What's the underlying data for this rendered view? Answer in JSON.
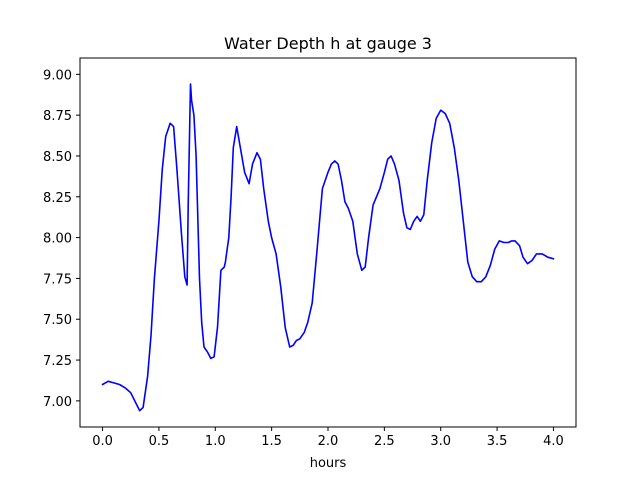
{
  "chart_data": {
    "type": "line",
    "title": "Water Depth h at gauge 3",
    "xlabel": "hours",
    "ylabel": "",
    "xlim": [
      -0.2,
      4.2
    ],
    "ylim": [
      6.84,
      9.1
    ],
    "xticks": [
      0.0,
      0.5,
      1.0,
      1.5,
      2.0,
      2.5,
      3.0,
      3.5,
      4.0
    ],
    "xtick_labels": [
      "0.0",
      "0.5",
      "1.0",
      "1.5",
      "2.0",
      "2.5",
      "3.0",
      "3.5",
      "4.0"
    ],
    "yticks": [
      7.0,
      7.25,
      7.5,
      7.75,
      8.0,
      8.25,
      8.5,
      8.75,
      9.0
    ],
    "ytick_labels": [
      "7.00",
      "7.25",
      "7.50",
      "7.75",
      "8.00",
      "8.25",
      "8.50",
      "8.75",
      "9.00"
    ],
    "grid": false,
    "series": [
      {
        "color": "#0000ff",
        "x": [
          0.0,
          0.05,
          0.1,
          0.15,
          0.2,
          0.25,
          0.3,
          0.33,
          0.36,
          0.4,
          0.43,
          0.46,
          0.5,
          0.53,
          0.56,
          0.6,
          0.63,
          0.66,
          0.7,
          0.73,
          0.75,
          0.76,
          0.78,
          0.79,
          0.81,
          0.83,
          0.86,
          0.88,
          0.9,
          0.93,
          0.96,
          0.99,
          1.02,
          1.05,
          1.08,
          1.09,
          1.1,
          1.12,
          1.14,
          1.16,
          1.19,
          1.22,
          1.26,
          1.3,
          1.33,
          1.37,
          1.4,
          1.43,
          1.47,
          1.5,
          1.54,
          1.58,
          1.62,
          1.66,
          1.69,
          1.72,
          1.75,
          1.79,
          1.82,
          1.86,
          1.9,
          1.95,
          2.0,
          2.03,
          2.06,
          2.09,
          2.12,
          2.15,
          2.18,
          2.22,
          2.26,
          2.3,
          2.33,
          2.36,
          2.4,
          2.43,
          2.46,
          2.5,
          2.53,
          2.56,
          2.59,
          2.63,
          2.67,
          2.7,
          2.73,
          2.76,
          2.79,
          2.82,
          2.85,
          2.88,
          2.92,
          2.96,
          3.0,
          3.04,
          3.08,
          3.12,
          3.16,
          3.2,
          3.24,
          3.28,
          3.32,
          3.36,
          3.4,
          3.44,
          3.48,
          3.52,
          3.56,
          3.6,
          3.63,
          3.66,
          3.7,
          3.73,
          3.77,
          3.81,
          3.85,
          3.9,
          3.95,
          4.0
        ],
        "y": [
          7.1,
          7.12,
          7.11,
          7.1,
          7.08,
          7.05,
          6.98,
          6.94,
          6.96,
          7.15,
          7.4,
          7.75,
          8.1,
          8.42,
          8.62,
          8.7,
          8.68,
          8.42,
          8.02,
          7.76,
          7.71,
          8.2,
          8.94,
          8.84,
          8.75,
          8.5,
          7.75,
          7.48,
          7.33,
          7.3,
          7.26,
          7.27,
          7.45,
          7.8,
          7.82,
          7.85,
          7.9,
          8.0,
          8.25,
          8.55,
          8.68,
          8.56,
          8.4,
          8.33,
          8.45,
          8.52,
          8.48,
          8.3,
          8.1,
          8.0,
          7.9,
          7.7,
          7.45,
          7.33,
          7.34,
          7.37,
          7.38,
          7.42,
          7.48,
          7.6,
          7.9,
          8.3,
          8.4,
          8.45,
          8.47,
          8.45,
          8.35,
          8.22,
          8.18,
          8.1,
          7.9,
          7.8,
          7.82,
          8.0,
          8.2,
          8.25,
          8.3,
          8.4,
          8.48,
          8.5,
          8.45,
          8.35,
          8.15,
          8.06,
          8.05,
          8.1,
          8.13,
          8.1,
          8.14,
          8.35,
          8.58,
          8.73,
          8.78,
          8.76,
          8.7,
          8.55,
          8.35,
          8.1,
          7.85,
          7.76,
          7.73,
          7.73,
          7.76,
          7.83,
          7.93,
          7.98,
          7.97,
          7.97,
          7.98,
          7.98,
          7.95,
          7.88,
          7.84,
          7.86,
          7.9,
          7.9,
          7.88,
          7.87
        ]
      }
    ]
  }
}
